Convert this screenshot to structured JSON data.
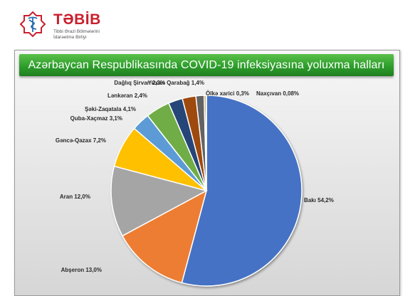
{
  "logo": {
    "name": "TƏBİB",
    "subtitle_lines": [
      "Tibbi Ərazi Bölmələrini",
      "İdarəetmə Birliyi"
    ],
    "icon": "medical-caduceus-icon",
    "brand_color": "#c9202e"
  },
  "chart_data": {
    "type": "pie",
    "title": "Azərbaycan Respublikasında COVID-19 infeksiyasına yoluxma halları",
    "slices": [
      {
        "label": "Bakı 54,2%",
        "value": 54.2,
        "color": "#4472c4"
      },
      {
        "label": "Abşeron 13,0%",
        "value": 13.0,
        "color": "#ed7d31"
      },
      {
        "label": "Aran 12,0%",
        "value": 12.0,
        "color": "#a5a5a5"
      },
      {
        "label": "Gəncə-Qazax 7,2%",
        "value": 7.2,
        "color": "#ffc000"
      },
      {
        "label": "Quba-Xaçmaz 3,1%",
        "value": 3.1,
        "color": "#5b9bd5"
      },
      {
        "label": "Şəki-Zaqatala 4,1%",
        "value": 4.1,
        "color": "#70ad47"
      },
      {
        "label": "Lənkəran 2,4%",
        "value": 2.4,
        "color": "#264478"
      },
      {
        "label": "Dağlıq Şirvan 2,3%",
        "value": 2.3,
        "color": "#9e480e"
      },
      {
        "label": "Yuxarı Qarabağ 1,4%",
        "value": 1.4,
        "color": "#636363"
      },
      {
        "label": "Ölkə xarici 0,3%",
        "value": 0.3,
        "color": "#997300"
      },
      {
        "label": "Naxçıvan 0,08%",
        "value": 0.08,
        "color": "#255e91"
      }
    ]
  }
}
